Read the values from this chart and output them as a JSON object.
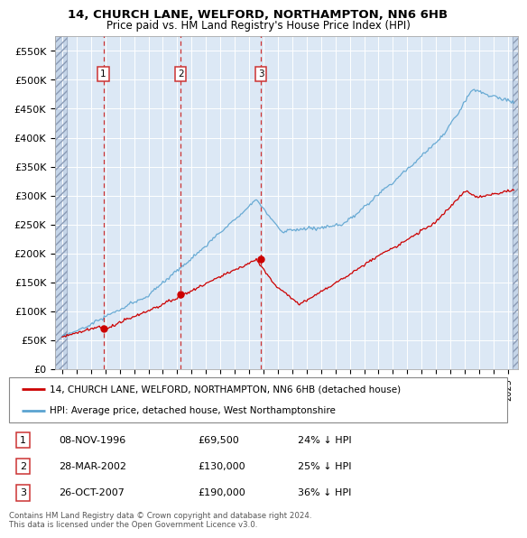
{
  "title1": "14, CHURCH LANE, WELFORD, NORTHAMPTON, NN6 6HB",
  "title2": "Price paid vs. HM Land Registry's House Price Index (HPI)",
  "ylabel_ticks": [
    "£0",
    "£50K",
    "£100K",
    "£150K",
    "£200K",
    "£250K",
    "£300K",
    "£350K",
    "£400K",
    "£450K",
    "£500K",
    "£550K"
  ],
  "ytick_values": [
    0,
    50000,
    100000,
    150000,
    200000,
    250000,
    300000,
    350000,
    400000,
    450000,
    500000,
    550000
  ],
  "xlim_start": 1993.5,
  "xlim_end": 2025.7,
  "ylim_min": 0,
  "ylim_max": 575000,
  "hpi_color": "#5ba3d0",
  "price_color": "#cc0000",
  "bg_color": "#dce8f5",
  "hatch_region_end": 1994.3,
  "purchases": [
    {
      "date_num": 1996.86,
      "price": 69500,
      "label": "1"
    },
    {
      "date_num": 2002.24,
      "price": 130000,
      "label": "2"
    },
    {
      "date_num": 2007.82,
      "price": 190000,
      "label": "3"
    }
  ],
  "legend_line1": "14, CHURCH LANE, WELFORD, NORTHAMPTON, NN6 6HB (detached house)",
  "legend_line2": "HPI: Average price, detached house, West Northamptonshire",
  "table_rows": [
    {
      "num": "1",
      "date": "08-NOV-1996",
      "price": "£69,500",
      "change": "24% ↓ HPI"
    },
    {
      "num": "2",
      "date": "28-MAR-2002",
      "price": "£130,000",
      "change": "25% ↓ HPI"
    },
    {
      "num": "3",
      "date": "26-OCT-2007",
      "price": "£190,000",
      "change": "36% ↓ HPI"
    }
  ],
  "footer": "Contains HM Land Registry data © Crown copyright and database right 2024.\nThis data is licensed under the Open Government Licence v3.0."
}
